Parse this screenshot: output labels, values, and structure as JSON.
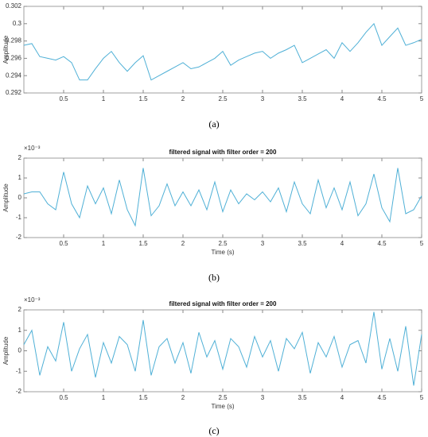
{
  "chart_data": [
    {
      "type": "line",
      "ylabel": "Amplitude",
      "caption": "(a)",
      "color": "#4fb0d6",
      "x": [
        0,
        0.1,
        0.2,
        0.3,
        0.4,
        0.5,
        0.6,
        0.7,
        0.8,
        0.9,
        1,
        1.1,
        1.2,
        1.3,
        1.4,
        1.5,
        1.6,
        1.7,
        1.8,
        1.9,
        2,
        2.1,
        2.2,
        2.3,
        2.4,
        2.5,
        2.6,
        2.7,
        2.8,
        2.9,
        3,
        3.1,
        3.2,
        3.3,
        3.4,
        3.5,
        3.6,
        3.7,
        3.8,
        3.9,
        4,
        4.1,
        4.2,
        4.3,
        4.4,
        4.5,
        4.6,
        4.7,
        4.8,
        4.9,
        5
      ],
      "values": [
        0.2975,
        0.2977,
        0.2962,
        0.296,
        0.2958,
        0.2962,
        0.2955,
        0.2935,
        0.2935,
        0.2948,
        0.296,
        0.2968,
        0.2955,
        0.2945,
        0.2955,
        0.2963,
        0.2935,
        0.294,
        0.2945,
        0.295,
        0.2955,
        0.2948,
        0.295,
        0.2955,
        0.296,
        0.2968,
        0.2952,
        0.2958,
        0.2962,
        0.2966,
        0.2968,
        0.296,
        0.2966,
        0.297,
        0.2975,
        0.2955,
        0.296,
        0.2965,
        0.297,
        0.296,
        0.2978,
        0.2968,
        0.2978,
        0.299,
        0.3,
        0.2975,
        0.2985,
        0.2995,
        0.2975,
        0.2978,
        0.2982
      ],
      "xlim": [
        0,
        5
      ],
      "ylim": [
        0.292,
        0.302
      ],
      "xticks": [
        0.5,
        1,
        1.5,
        2,
        2.5,
        3,
        3.5,
        4,
        4.5,
        5
      ],
      "yticks": [
        0.292,
        0.294,
        0.296,
        0.298,
        0.3,
        0.302
      ]
    },
    {
      "type": "line",
      "title": "filtered signal with filter order = 200",
      "y_exponent": "×10⁻³",
      "ylabel": "Amplitude",
      "xlabel": "Time (s)",
      "caption": "(b)",
      "color": "#4fb0d6",
      "x": [
        0,
        0.1,
        0.2,
        0.3,
        0.4,
        0.5,
        0.6,
        0.7,
        0.8,
        0.9,
        1,
        1.1,
        1.2,
        1.3,
        1.4,
        1.5,
        1.6,
        1.7,
        1.8,
        1.9,
        2,
        2.1,
        2.2,
        2.3,
        2.4,
        2.5,
        2.6,
        2.7,
        2.8,
        2.9,
        3,
        3.1,
        3.2,
        3.3,
        3.4,
        3.5,
        3.6,
        3.7,
        3.8,
        3.9,
        4,
        4.1,
        4.2,
        4.3,
        4.4,
        4.5,
        4.6,
        4.7,
        4.8,
        4.9,
        5
      ],
      "values": [
        0.2,
        0.3,
        0.3,
        -0.3,
        -0.6,
        1.3,
        -0.3,
        -1.0,
        0.6,
        -0.3,
        0.5,
        -0.8,
        0.9,
        -0.6,
        -1.4,
        1.5,
        -0.9,
        -0.4,
        0.7,
        -0.4,
        0.3,
        -0.4,
        0.4,
        -0.6,
        0.8,
        -0.7,
        0.4,
        -0.3,
        0.2,
        -0.1,
        0.3,
        -0.2,
        0.5,
        -0.7,
        0.8,
        -0.3,
        -0.8,
        0.9,
        -0.5,
        0.5,
        -0.6,
        0.8,
        -0.9,
        -0.3,
        1.2,
        -0.5,
        -1.2,
        1.5,
        -0.8,
        -0.6,
        0.1
      ],
      "xlim": [
        0,
        5
      ],
      "ylim": [
        -2,
        2
      ],
      "xticks": [
        0.5,
        1,
        1.5,
        2,
        2.5,
        3,
        3.5,
        4,
        4.5,
        5
      ],
      "yticks": [
        -2,
        -1,
        0,
        1,
        2
      ]
    },
    {
      "type": "line",
      "title": "filtered signal with filter order = 200",
      "y_exponent": "×10⁻³",
      "ylabel": "Amplitude",
      "xlabel": "Time (s)",
      "caption": "(c)",
      "color": "#4fb0d6",
      "x": [
        0,
        0.1,
        0.2,
        0.3,
        0.4,
        0.5,
        0.6,
        0.7,
        0.8,
        0.9,
        1,
        1.1,
        1.2,
        1.3,
        1.4,
        1.5,
        1.6,
        1.7,
        1.8,
        1.9,
        2,
        2.1,
        2.2,
        2.3,
        2.4,
        2.5,
        2.6,
        2.7,
        2.8,
        2.9,
        3,
        3.1,
        3.2,
        3.3,
        3.4,
        3.5,
        3.6,
        3.7,
        3.8,
        3.9,
        4,
        4.1,
        4.2,
        4.3,
        4.4,
        4.5,
        4.6,
        4.7,
        4.8,
        4.9,
        5
      ],
      "values": [
        0.3,
        1.0,
        -1.2,
        0.2,
        -0.5,
        1.4,
        -1.0,
        0.1,
        0.8,
        -1.3,
        0.4,
        -0.6,
        0.7,
        0.3,
        -1.0,
        1.5,
        -1.2,
        0.2,
        0.6,
        -0.6,
        0.4,
        -1.1,
        0.9,
        -0.3,
        0.5,
        -0.9,
        0.6,
        0.2,
        -0.8,
        0.7,
        -0.3,
        0.5,
        -1.0,
        0.6,
        0.1,
        0.9,
        -1.1,
        0.4,
        -0.3,
        0.7,
        -0.8,
        0.3,
        0.5,
        -0.6,
        1.9,
        -0.9,
        0.6,
        -1.0,
        1.2,
        -1.7,
        0.8
      ],
      "xlim": [
        0,
        5
      ],
      "ylim": [
        -2,
        2
      ],
      "xticks": [
        0.5,
        1,
        1.5,
        2,
        2.5,
        3,
        3.5,
        4,
        4.5,
        5
      ],
      "yticks": [
        -2,
        -1,
        0,
        1,
        2
      ]
    }
  ]
}
